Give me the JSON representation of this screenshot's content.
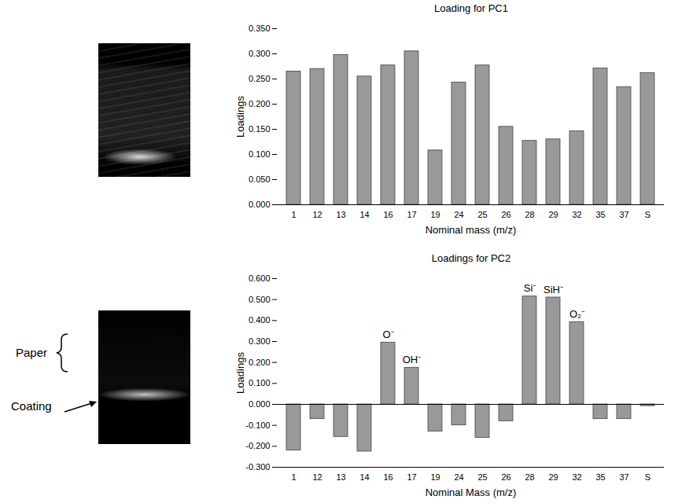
{
  "image_labels": [
    "Paper",
    "Coating"
  ],
  "chart_data": [
    {
      "type": "bar",
      "title": "Loading for PC1",
      "x_label": "Nominal mass (m/z)",
      "y_label": "Loadings",
      "categories": [
        "1",
        "12",
        "13",
        "14",
        "16",
        "17",
        "19",
        "24",
        "25",
        "26",
        "28",
        "29",
        "32",
        "35",
        "37",
        "S"
      ],
      "values": [
        0.265,
        0.27,
        0.298,
        0.255,
        0.277,
        0.305,
        0.108,
        0.243,
        0.277,
        0.155,
        0.127,
        0.13,
        0.146,
        0.271,
        0.234,
        0.262
      ],
      "color": "#999999",
      "ylim": [
        0,
        0.35
      ],
      "yticks": [
        {
          "value": 0,
          "label": "0.000"
        },
        {
          "value": 0.05,
          "label": "0.050"
        },
        {
          "value": 0.1,
          "label": "0.100"
        },
        {
          "value": 0.15,
          "label": "0.150"
        },
        {
          "value": 0.2,
          "label": "0.200"
        },
        {
          "value": 0.25,
          "label": "0.250"
        },
        {
          "value": 0.3,
          "label": "0.300"
        },
        {
          "value": 0.35,
          "label": "0.350"
        }
      ],
      "grid": false
    },
    {
      "type": "bar",
      "title": "Loadings for PC2",
      "x_label": "Nominal Mass (m/z)",
      "y_label": "Loadings",
      "categories": [
        "1",
        "12",
        "13",
        "14",
        "16",
        "17",
        "19",
        "24",
        "25",
        "26",
        "28",
        "29",
        "32",
        "35",
        "37",
        "S"
      ],
      "values": [
        -0.22,
        -0.07,
        -0.155,
        -0.225,
        0.295,
        0.175,
        -0.13,
        -0.1,
        -0.16,
        -0.08,
        0.515,
        0.51,
        0.393,
        -0.07,
        -0.07,
        -0.008
      ],
      "color": "#999999",
      "ylim": [
        -0.3,
        0.6
      ],
      "yticks": [
        {
          "value": -0.3,
          "label": "-0.300"
        },
        {
          "value": -0.2,
          "label": "-0.200"
        },
        {
          "value": -0.1,
          "label": "-0.100"
        },
        {
          "value": 0,
          "label": "0.000"
        },
        {
          "value": 0.1,
          "label": "0.100"
        },
        {
          "value": 0.2,
          "label": "0.200"
        },
        {
          "value": 0.3,
          "label": "0.300"
        },
        {
          "value": 0.4,
          "label": "0.400"
        },
        {
          "value": 0.5,
          "label": "0.500"
        },
        {
          "value": 0.6,
          "label": "0.600"
        }
      ],
      "annotations": [
        {
          "category": "16",
          "text": "O⁻"
        },
        {
          "category": "17",
          "text": "OH⁻"
        },
        {
          "category": "28",
          "text": "Si⁻"
        },
        {
          "category": "29",
          "text": "SiH⁻"
        },
        {
          "category": "32",
          "text": "O₂⁻"
        }
      ],
      "grid": false
    }
  ]
}
